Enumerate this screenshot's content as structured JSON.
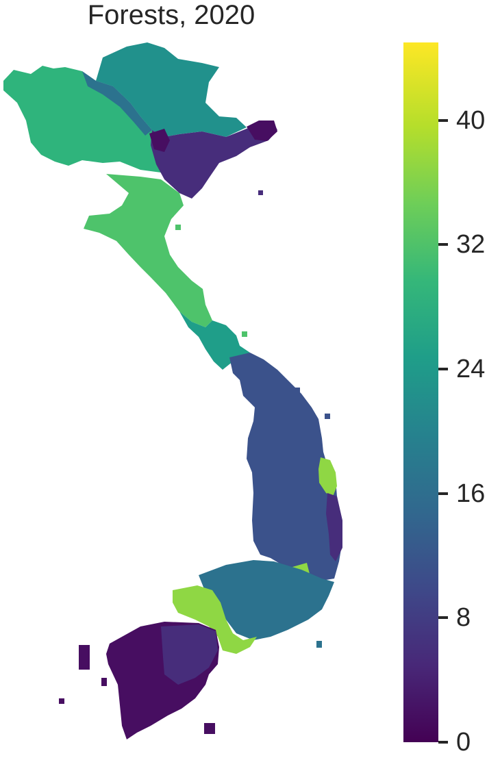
{
  "title": "Forests, 2020",
  "colors": {
    "v2": "#470e61",
    "v6": "#472d7b",
    "v12": "#3b528b",
    "v16": "#2c728e",
    "v21": "#21918c",
    "v24": "#1f9e89",
    "v27": "#2fb47c",
    "v33": "#4ec36b",
    "v38": "#8fd744"
  },
  "colorbar": {
    "min": 0,
    "max": 45,
    "ticks": [
      {
        "value": 0,
        "label": "0"
      },
      {
        "value": 8,
        "label": "8"
      },
      {
        "value": 16,
        "label": "16"
      },
      {
        "value": 24,
        "label": "24"
      },
      {
        "value": 32,
        "label": "32"
      },
      {
        "value": 40,
        "label": "40"
      }
    ]
  }
}
